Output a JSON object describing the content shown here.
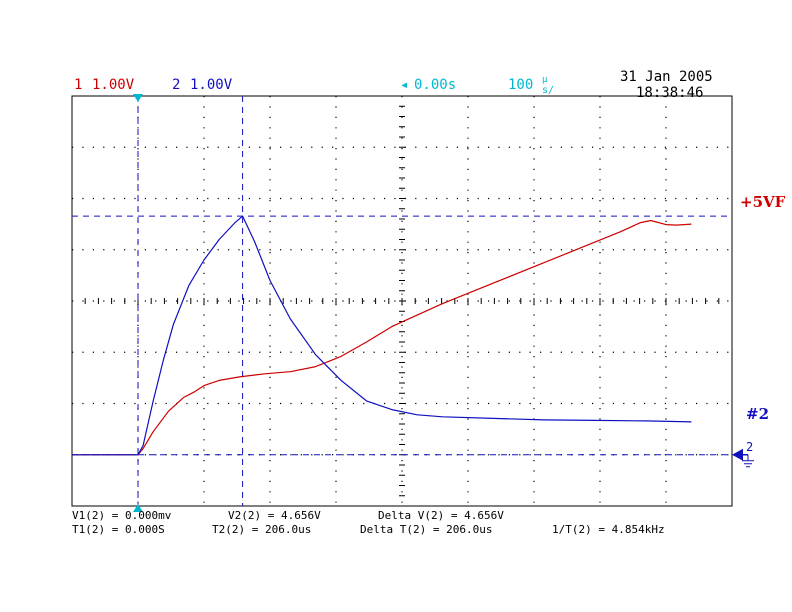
{
  "header": {
    "ch1_num": "1",
    "ch1_scale": "1.00V",
    "ch2_num": "2",
    "ch2_scale": "1.00V",
    "delay": "0.00s",
    "timebase": "100",
    "timebase_unit": "s/",
    "timebase_unit_sup": "μ",
    "date": "31 Jan 2005",
    "time": "18:38:46"
  },
  "labels": {
    "ch1_marker": "+5VF",
    "ch2_marker": "#2",
    "ground_marker": "2"
  },
  "measurements": {
    "line1": [
      "V1(2) = 0.000mv",
      "V2(2) = 4.656V",
      "Delta V(2) = 4.656V"
    ],
    "line2": [
      "T1(2) = 0.000S",
      "T2(2) = 206.0us",
      "Delta T(2) = 206.0us",
      "1/T(2) = 4.854kHz"
    ]
  },
  "colors": {
    "ch1": "#cc0000",
    "ch2": "#1010c0",
    "trigger": "#00b8d0",
    "grid": "#000000"
  },
  "chart_data": {
    "type": "line",
    "title": "",
    "xlabel": "",
    "ylabel": "",
    "x_unit": "us",
    "y_unit": "V",
    "xlim": [
      -130,
      1170
    ],
    "ylim": [
      -1,
      7
    ],
    "grid": true,
    "cursors": {
      "t1_us": 0.0,
      "t2_us": 206.0,
      "v1": 0.0,
      "v2": 4.656
    },
    "series": [
      {
        "name": "1",
        "values": [
          [
            -130,
            0.0
          ],
          [
            0,
            0.0
          ],
          [
            10,
            0.12
          ],
          [
            30,
            0.45
          ],
          [
            60,
            0.85
          ],
          [
            90,
            1.12
          ],
          [
            110,
            1.22
          ],
          [
            130,
            1.35
          ],
          [
            160,
            1.45
          ],
          [
            200,
            1.52
          ],
          [
            250,
            1.58
          ],
          [
            300,
            1.62
          ],
          [
            350,
            1.72
          ],
          [
            400,
            1.92
          ],
          [
            450,
            2.2
          ],
          [
            500,
            2.5
          ],
          [
            600,
            2.95
          ],
          [
            700,
            3.35
          ],
          [
            800,
            3.75
          ],
          [
            900,
            4.15
          ],
          [
            950,
            4.35
          ],
          [
            990,
            4.53
          ],
          [
            1010,
            4.57
          ],
          [
            1040,
            4.49
          ],
          [
            1060,
            4.48
          ],
          [
            1090,
            4.5
          ]
        ]
      },
      {
        "name": "2",
        "values": [
          [
            -130,
            0.0
          ],
          [
            0,
            0.0
          ],
          [
            10,
            0.18
          ],
          [
            30,
            1.05
          ],
          [
            50,
            1.85
          ],
          [
            70,
            2.55
          ],
          [
            100,
            3.3
          ],
          [
            130,
            3.8
          ],
          [
            160,
            4.2
          ],
          [
            190,
            4.52
          ],
          [
            206,
            4.656
          ],
          [
            230,
            4.15
          ],
          [
            260,
            3.4
          ],
          [
            300,
            2.65
          ],
          [
            350,
            1.95
          ],
          [
            400,
            1.45
          ],
          [
            450,
            1.05
          ],
          [
            500,
            0.88
          ],
          [
            550,
            0.78
          ],
          [
            600,
            0.74
          ],
          [
            700,
            0.71
          ],
          [
            800,
            0.68
          ],
          [
            900,
            0.67
          ],
          [
            1000,
            0.66
          ],
          [
            1090,
            0.64
          ]
        ]
      }
    ]
  }
}
